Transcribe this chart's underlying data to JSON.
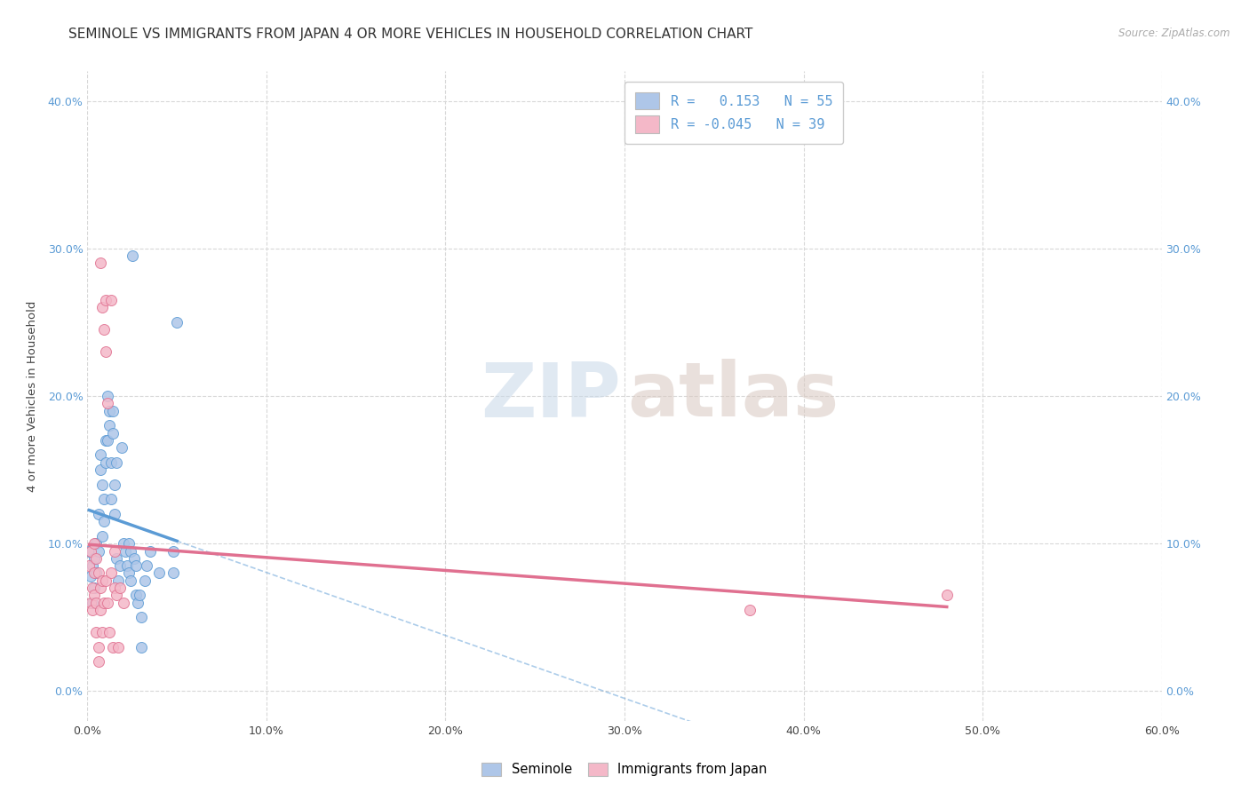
{
  "title": "SEMINOLE VS IMMIGRANTS FROM JAPAN 4 OR MORE VEHICLES IN HOUSEHOLD CORRELATION CHART",
  "source": "Source: ZipAtlas.com",
  "ylabel_label": "4 or more Vehicles in Household",
  "xmin": 0.0,
  "xmax": 60.0,
  "ymin": -2.0,
  "ymax": 42.0,
  "xticks": [
    0.0,
    10.0,
    20.0,
    30.0,
    40.0,
    50.0,
    60.0
  ],
  "yticks": [
    0.0,
    10.0,
    20.0,
    30.0,
    40.0
  ],
  "seminole_R": 0.153,
  "seminole_N": 55,
  "japan_R": -0.045,
  "japan_N": 39,
  "seminole_color": "#aec6e8",
  "japan_color": "#f4b8c8",
  "seminole_line_color": "#5b9bd5",
  "japan_line_color": "#e07090",
  "seminole_scatter": [
    [
      0.1,
      9.5
    ],
    [
      0.2,
      7.8
    ],
    [
      0.3,
      8.5
    ],
    [
      0.3,
      6.0
    ],
    [
      0.4,
      7.0
    ],
    [
      0.4,
      9.0
    ],
    [
      0.5,
      10.0
    ],
    [
      0.5,
      8.0
    ],
    [
      0.6,
      12.0
    ],
    [
      0.6,
      9.5
    ],
    [
      0.7,
      15.0
    ],
    [
      0.7,
      16.0
    ],
    [
      0.8,
      14.0
    ],
    [
      0.8,
      10.5
    ],
    [
      0.9,
      11.5
    ],
    [
      0.9,
      13.0
    ],
    [
      1.0,
      17.0
    ],
    [
      1.0,
      15.5
    ],
    [
      1.1,
      20.0
    ],
    [
      1.1,
      17.0
    ],
    [
      1.2,
      18.0
    ],
    [
      1.2,
      19.0
    ],
    [
      1.3,
      15.5
    ],
    [
      1.3,
      13.0
    ],
    [
      1.4,
      17.5
    ],
    [
      1.4,
      19.0
    ],
    [
      1.5,
      14.0
    ],
    [
      1.5,
      12.0
    ],
    [
      1.6,
      15.5
    ],
    [
      1.6,
      9.0
    ],
    [
      1.7,
      7.5
    ],
    [
      1.8,
      8.5
    ],
    [
      1.9,
      16.5
    ],
    [
      2.0,
      10.0
    ],
    [
      2.1,
      9.5
    ],
    [
      2.2,
      8.5
    ],
    [
      2.3,
      10.0
    ],
    [
      2.3,
      8.0
    ],
    [
      2.4,
      9.5
    ],
    [
      2.4,
      7.5
    ],
    [
      2.5,
      29.5
    ],
    [
      2.6,
      9.0
    ],
    [
      2.7,
      8.5
    ],
    [
      2.7,
      6.5
    ],
    [
      2.8,
      6.0
    ],
    [
      2.9,
      6.5
    ],
    [
      3.0,
      5.0
    ],
    [
      3.0,
      3.0
    ],
    [
      3.2,
      7.5
    ],
    [
      3.3,
      8.5
    ],
    [
      3.5,
      9.5
    ],
    [
      4.0,
      8.0
    ],
    [
      4.8,
      9.5
    ],
    [
      4.8,
      8.0
    ],
    [
      5.0,
      25.0
    ]
  ],
  "japan_scatter": [
    [
      0.1,
      8.5
    ],
    [
      0.2,
      6.0
    ],
    [
      0.2,
      9.5
    ],
    [
      0.3,
      7.0
    ],
    [
      0.3,
      5.5
    ],
    [
      0.4,
      10.0
    ],
    [
      0.4,
      8.0
    ],
    [
      0.4,
      6.5
    ],
    [
      0.5,
      9.0
    ],
    [
      0.5,
      6.0
    ],
    [
      0.5,
      4.0
    ],
    [
      0.6,
      8.0
    ],
    [
      0.6,
      3.0
    ],
    [
      0.6,
      2.0
    ],
    [
      0.7,
      29.0
    ],
    [
      0.7,
      7.0
    ],
    [
      0.7,
      5.5
    ],
    [
      0.8,
      26.0
    ],
    [
      0.8,
      7.5
    ],
    [
      0.8,
      4.0
    ],
    [
      0.9,
      24.5
    ],
    [
      0.9,
      6.0
    ],
    [
      1.0,
      26.5
    ],
    [
      1.0,
      23.0
    ],
    [
      1.0,
      7.5
    ],
    [
      1.1,
      19.5
    ],
    [
      1.1,
      6.0
    ],
    [
      1.2,
      4.0
    ],
    [
      1.3,
      26.5
    ],
    [
      1.3,
      8.0
    ],
    [
      1.4,
      3.0
    ],
    [
      1.5,
      9.5
    ],
    [
      1.5,
      7.0
    ],
    [
      1.6,
      6.5
    ],
    [
      1.7,
      3.0
    ],
    [
      1.8,
      7.0
    ],
    [
      2.0,
      6.0
    ],
    [
      37.0,
      5.5
    ],
    [
      48.0,
      6.5
    ]
  ],
  "watermark_zip": "ZIP",
  "watermark_atlas": "atlas",
  "background_color": "#ffffff",
  "grid_color": "#d8d8d8",
  "title_fontsize": 11,
  "axis_label_fontsize": 9.5,
  "tick_fontsize": 9,
  "tick_color": "#5b9bd5"
}
